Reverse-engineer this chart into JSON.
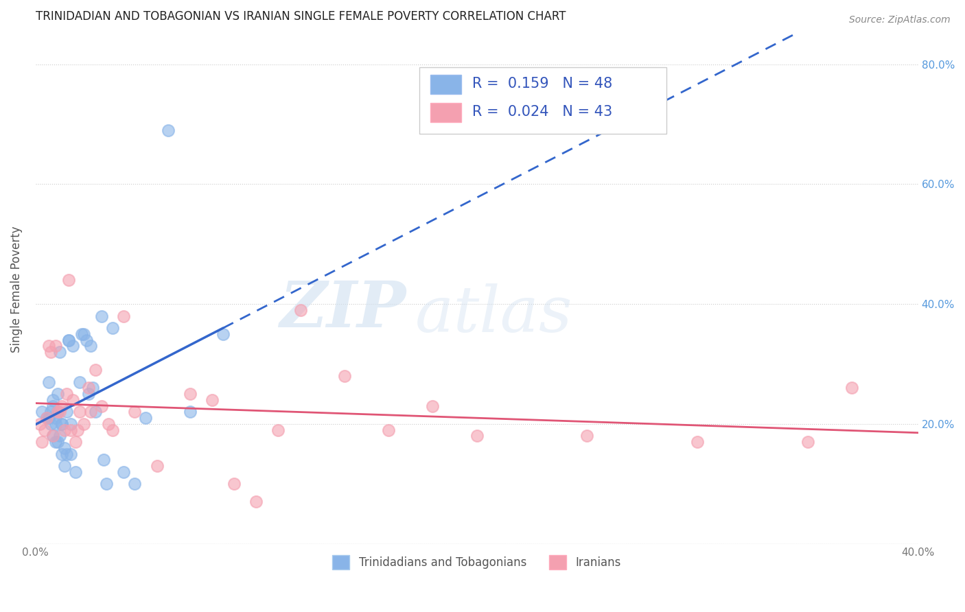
{
  "title": "TRINIDADIAN AND TOBAGONIAN VS IRANIAN SINGLE FEMALE POVERTY CORRELATION CHART",
  "source": "Source: ZipAtlas.com",
  "ylabel": "Single Female Poverty",
  "xlim": [
    0.0,
    0.4
  ],
  "ylim": [
    0.0,
    0.85
  ],
  "right_ytick_labels": [
    "20.0%",
    "40.0%",
    "60.0%",
    "80.0%"
  ],
  "right_yticks": [
    0.2,
    0.4,
    0.6,
    0.8
  ],
  "R_trin": 0.159,
  "N_trin": 48,
  "R_iran": 0.024,
  "N_iran": 43,
  "color_trin": "#89b4e8",
  "color_iran": "#f4a0b0",
  "trendline_trin_color": "#3366cc",
  "trendline_iran_color": "#e05575",
  "legend_label_trin": "Trinidadians and Tobagonians",
  "legend_label_iran": "Iranians",
  "trin_x": [
    0.003,
    0.005,
    0.006,
    0.006,
    0.007,
    0.007,
    0.008,
    0.008,
    0.008,
    0.009,
    0.009,
    0.009,
    0.01,
    0.01,
    0.01,
    0.011,
    0.011,
    0.012,
    0.012,
    0.012,
    0.013,
    0.013,
    0.014,
    0.014,
    0.015,
    0.015,
    0.016,
    0.016,
    0.017,
    0.018,
    0.02,
    0.021,
    0.022,
    0.023,
    0.024,
    0.025,
    0.026,
    0.027,
    0.03,
    0.031,
    0.032,
    0.035,
    0.04,
    0.045,
    0.05,
    0.06,
    0.07,
    0.085
  ],
  "trin_y": [
    0.22,
    0.21,
    0.27,
    0.21,
    0.2,
    0.22,
    0.18,
    0.23,
    0.24,
    0.2,
    0.17,
    0.21,
    0.17,
    0.25,
    0.22,
    0.18,
    0.32,
    0.2,
    0.15,
    0.2,
    0.13,
    0.16,
    0.15,
    0.22,
    0.34,
    0.34,
    0.2,
    0.15,
    0.33,
    0.12,
    0.27,
    0.35,
    0.35,
    0.34,
    0.25,
    0.33,
    0.26,
    0.22,
    0.38,
    0.14,
    0.1,
    0.36,
    0.12,
    0.1,
    0.21,
    0.69,
    0.22,
    0.35
  ],
  "iran_x": [
    0.002,
    0.003,
    0.004,
    0.005,
    0.006,
    0.007,
    0.008,
    0.009,
    0.01,
    0.011,
    0.012,
    0.013,
    0.014,
    0.015,
    0.016,
    0.017,
    0.018,
    0.019,
    0.02,
    0.022,
    0.024,
    0.025,
    0.027,
    0.03,
    0.033,
    0.035,
    0.04,
    0.045,
    0.055,
    0.07,
    0.08,
    0.09,
    0.1,
    0.11,
    0.12,
    0.14,
    0.16,
    0.18,
    0.2,
    0.25,
    0.3,
    0.35,
    0.37
  ],
  "iran_y": [
    0.2,
    0.17,
    0.19,
    0.21,
    0.33,
    0.32,
    0.18,
    0.33,
    0.22,
    0.22,
    0.23,
    0.19,
    0.25,
    0.44,
    0.19,
    0.24,
    0.17,
    0.19,
    0.22,
    0.2,
    0.26,
    0.22,
    0.29,
    0.23,
    0.2,
    0.19,
    0.38,
    0.22,
    0.13,
    0.25,
    0.24,
    0.1,
    0.07,
    0.19,
    0.39,
    0.28,
    0.19,
    0.23,
    0.18,
    0.18,
    0.17,
    0.17,
    0.26
  ],
  "background_color": "#ffffff",
  "grid_color": "#cccccc"
}
